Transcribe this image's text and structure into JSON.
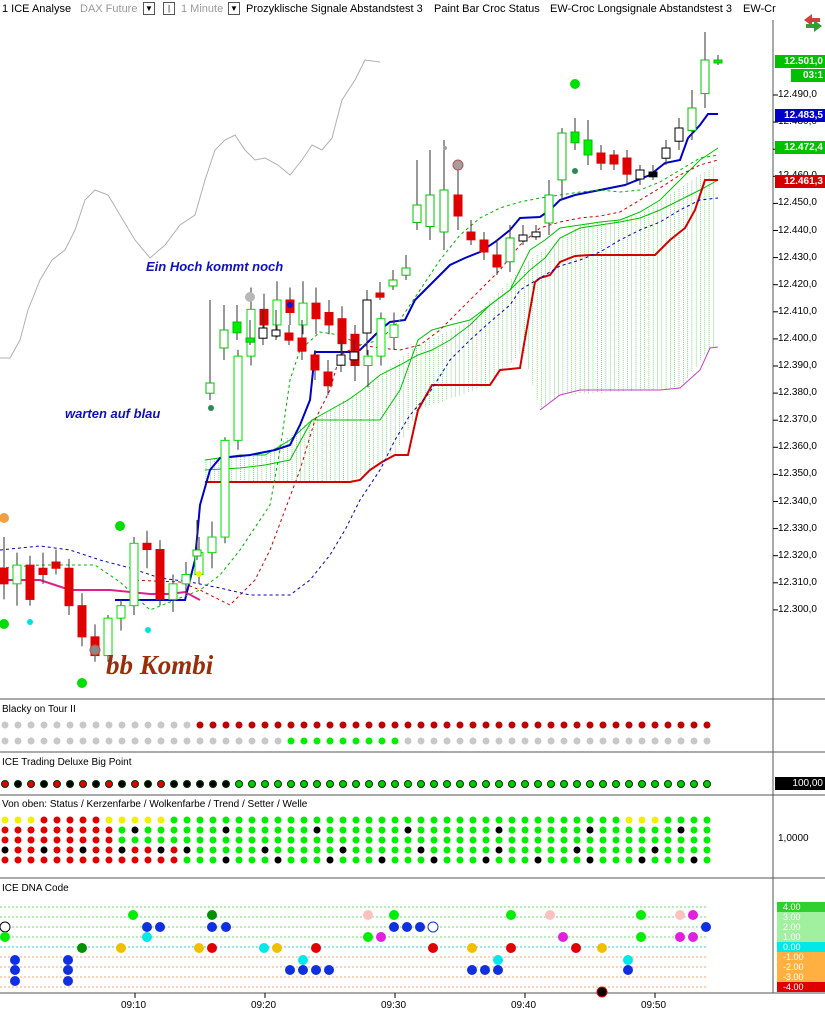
{
  "toolbar": {
    "window_title": "1 ICE Analyse",
    "instrument": "DAX Future",
    "timeframe": "1 Minute",
    "indicator_1": "Prozyklische Signale Abstandstest 3",
    "indicator_2": "Paint Bar Croc Status",
    "indicator_3": "EW-Croc Longsignale Abstandstest 3",
    "indicator_4": "EW-Cr"
  },
  "annotations": {
    "high_note": "Ein Hoch kommt noch",
    "wait_note": "warten auf blau",
    "combo_note": "bb Kombi"
  },
  "price_axis": {
    "ticks": [
      "12.490,0",
      "12.480,0",
      "12.470,0",
      "12.460,0",
      "12.450,0",
      "12.440,0",
      "12.430,0",
      "12.420,0",
      "12.410,0",
      "12.400,0",
      "12.390,0",
      "12.380,0",
      "12.370,0",
      "12.360,0",
      "12.350,0",
      "12.340,0",
      "12.330,0",
      "12.320,0",
      "12.310,0",
      "12.300,0"
    ],
    "last_price": "12.501,0",
    "countdown": "03:1",
    "tag_blue": "12.483,5",
    "tag_green": "12.472,4",
    "tag_red": "12.461,3"
  },
  "panes": {
    "blacky": "Blacky on Tour II",
    "bigpoint": "ICE Trading Deluxe Big Point",
    "bigpoint_value": "100,00",
    "status": "Von oben: Status / Kerzenfarbe / Wolkenfarbe / Trend / Setter / Welle",
    "status_value": "1,0000",
    "dna": "ICE DNA Code",
    "dna_scale": [
      "4.00",
      "3.00",
      "2.00",
      "1.00",
      "0.00",
      "-1.00",
      "-2.00",
      "-3.00",
      "-4.00"
    ]
  },
  "time_axis": [
    "09:10",
    "09:20",
    "09:30",
    "09:40",
    "09:50"
  ],
  "colors": {
    "up": "#00dd00",
    "down": "#e00000",
    "kijun": "#0000c8",
    "cloud": "#00c800",
    "base": "#d40000",
    "lagging": "#a0a0a0",
    "magenta": "#c040c0"
  },
  "chart_data": {
    "type": "candlestick",
    "ylim": [
      12290,
      12500
    ],
    "x_start_time": "09:00",
    "candles": [
      {
        "t": "09:01",
        "o": 12330,
        "h": 12340,
        "l": 12320,
        "c": 12325
      },
      {
        "t": "09:02",
        "o": 12325,
        "h": 12335,
        "l": 12318,
        "c": 12331
      },
      {
        "t": "09:03",
        "o": 12331,
        "h": 12334,
        "l": 12318,
        "c": 12320
      },
      {
        "t": "09:04",
        "o": 12330,
        "h": 12335,
        "l": 12325,
        "c": 12328
      },
      {
        "t": "09:05",
        "o": 12332,
        "h": 12336,
        "l": 12328,
        "c": 12330
      },
      {
        "t": "09:06",
        "o": 12330,
        "h": 12333,
        "l": 12315,
        "c": 12318
      },
      {
        "t": "09:07",
        "o": 12318,
        "h": 12322,
        "l": 12305,
        "c": 12308
      },
      {
        "t": "09:08",
        "o": 12308,
        "h": 12312,
        "l": 12300,
        "c": 12302
      },
      {
        "t": "09:09",
        "o": 12302,
        "h": 12315,
        "l": 12300,
        "c": 12314
      },
      {
        "t": "09:10",
        "o": 12314,
        "h": 12320,
        "l": 12310,
        "c": 12318
      },
      {
        "t": "09:11",
        "o": 12318,
        "h": 12340,
        "l": 12315,
        "c": 12338
      },
      {
        "t": "09:12",
        "o": 12338,
        "h": 12342,
        "l": 12330,
        "c": 12336
      },
      {
        "t": "09:13",
        "o": 12336,
        "h": 12339,
        "l": 12318,
        "c": 12320
      },
      {
        "t": "09:14",
        "o": 12320,
        "h": 12328,
        "l": 12316,
        "c": 12325
      },
      {
        "t": "09:15",
        "o": 12325,
        "h": 12332,
        "l": 12322,
        "c": 12328
      },
      {
        "t": "09:16",
        "o": 12328,
        "h": 12340,
        "l": 12325,
        "c": 12335
      },
      {
        "t": "09:17",
        "o": 12335,
        "h": 12345,
        "l": 12330,
        "c": 12340
      },
      {
        "t": "09:18",
        "o": 12340,
        "h": 12372,
        "l": 12338,
        "c": 12371
      },
      {
        "t": "09:19",
        "o": 12371,
        "h": 12400,
        "l": 12368,
        "c": 12398
      },
      {
        "t": "09:20",
        "o": 12398,
        "h": 12420,
        "l": 12395,
        "c": 12413
      },
      {
        "t": "09:21",
        "o": 12413,
        "h": 12418,
        "l": 12405,
        "c": 12408
      },
      {
        "t": "09:22",
        "o": 12408,
        "h": 12422,
        "l": 12404,
        "c": 12416
      },
      {
        "t": "09:23",
        "o": 12416,
        "h": 12420,
        "l": 12408,
        "c": 12412
      },
      {
        "t": "09:24",
        "o": 12408,
        "h": 12422,
        "l": 12405,
        "c": 12415
      },
      {
        "t": "09:25",
        "o": 12415,
        "h": 12420,
        "l": 12405,
        "c": 12410
      },
      {
        "t": "09:26",
        "o": 12412,
        "h": 12416,
        "l": 12405,
        "c": 12408
      },
      {
        "t": "09:27",
        "o": 12410,
        "h": 12414,
        "l": 12398,
        "c": 12402
      },
      {
        "t": "09:28",
        "o": 12405,
        "h": 12408,
        "l": 12390,
        "c": 12395
      },
      {
        "t": "09:29",
        "o": 12395,
        "h": 12400,
        "l": 12388,
        "c": 12398
      },
      {
        "t": "09:30",
        "o": 12398,
        "h": 12412,
        "l": 12395,
        "c": 12410
      },
      {
        "t": "09:31",
        "o": 12404,
        "h": 12412,
        "l": 12400,
        "c": 12408
      }
    ]
  }
}
